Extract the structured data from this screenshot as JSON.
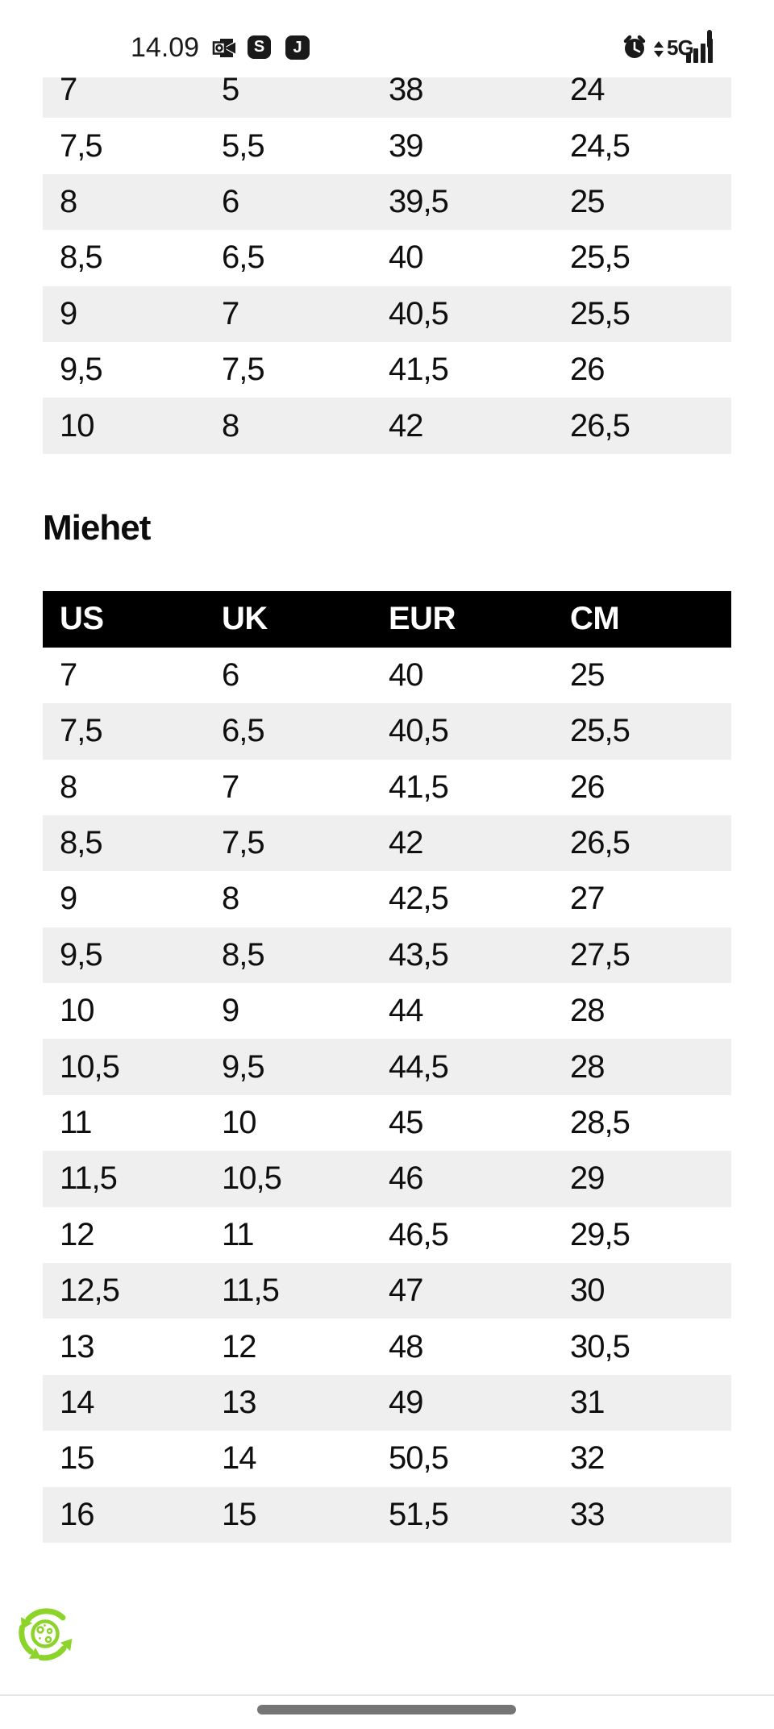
{
  "status_bar": {
    "time": "14.09",
    "badges": [
      "S",
      "J"
    ],
    "network": "5G"
  },
  "women_table": {
    "rows": [
      [
        "7",
        "5",
        "38",
        "24"
      ],
      [
        "7,5",
        "5,5",
        "39",
        "24,5"
      ],
      [
        "8",
        "6",
        "39,5",
        "25"
      ],
      [
        "8,5",
        "6,5",
        "40",
        "25,5"
      ],
      [
        "9",
        "7",
        "40,5",
        "25,5"
      ],
      [
        "9,5",
        "7,5",
        "41,5",
        "26"
      ],
      [
        "10",
        "8",
        "42",
        "26,5"
      ]
    ]
  },
  "section_heading": "Miehet",
  "men_table": {
    "headers": [
      "US",
      "UK",
      "EUR",
      "CM"
    ],
    "rows": [
      [
        "7",
        "6",
        "40",
        "25"
      ],
      [
        "7,5",
        "6,5",
        "40,5",
        "25,5"
      ],
      [
        "8",
        "7",
        "41,5",
        "26"
      ],
      [
        "8,5",
        "7,5",
        "42",
        "26,5"
      ],
      [
        "9",
        "8",
        "42,5",
        "27"
      ],
      [
        "9,5",
        "8,5",
        "43,5",
        "27,5"
      ],
      [
        "10",
        "9",
        "44",
        "28"
      ],
      [
        "10,5",
        "9,5",
        "44,5",
        "28"
      ],
      [
        "11",
        "10",
        "45",
        "28,5"
      ],
      [
        "11,5",
        "10,5",
        "46",
        "29"
      ],
      [
        "12",
        "11",
        "46,5",
        "29,5"
      ],
      [
        "12,5",
        "11,5",
        "47",
        "30"
      ],
      [
        "13",
        "12",
        "48",
        "30,5"
      ],
      [
        "14",
        "13",
        "49",
        "31"
      ],
      [
        "15",
        "14",
        "50,5",
        "32"
      ],
      [
        "16",
        "15",
        "51,5",
        "33"
      ]
    ]
  },
  "colors": {
    "row_alt": "#EFEFEF",
    "header_bg": "#000000",
    "accent_green": "#8CD42A",
    "icon": "#1A1A1A",
    "handle": "#757575",
    "divider": "#E7E7E7"
  }
}
